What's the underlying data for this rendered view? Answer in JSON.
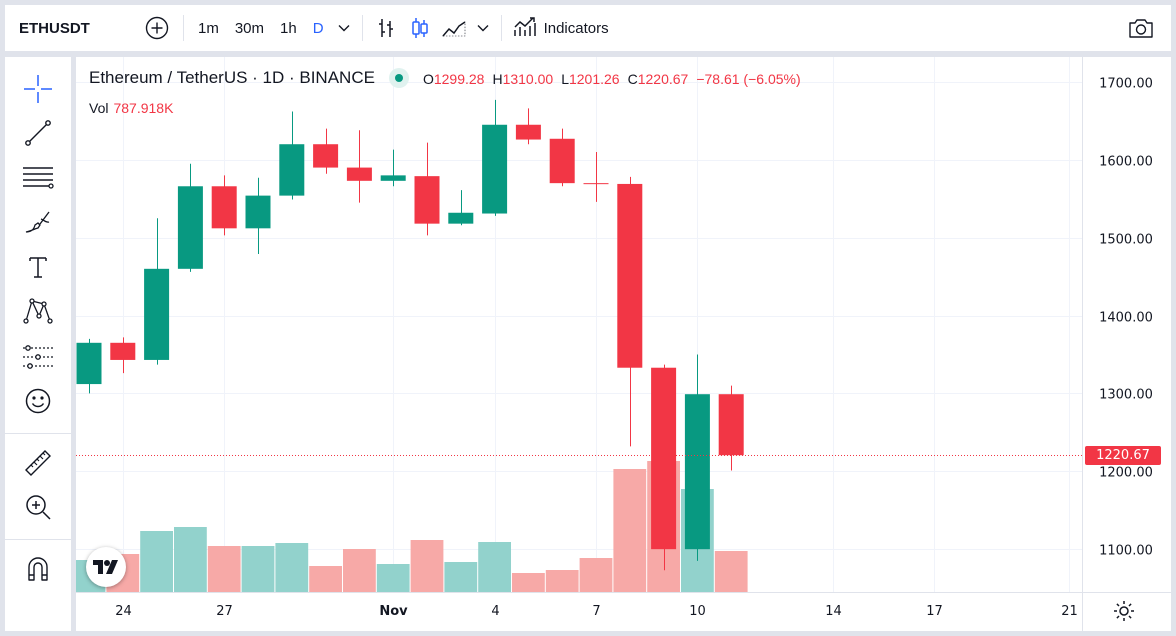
{
  "toolbar": {
    "symbol": "ETHUSDT",
    "intervals": [
      "1m",
      "30m",
      "1h",
      "D"
    ],
    "active_interval": "D",
    "indicators_label": "Indicators",
    "icons": [
      "plus-circle-icon",
      "bar-chart-icon",
      "candles-icon",
      "area-chart-icon",
      "chevron-down-icon",
      "indicators-icon",
      "camera-icon"
    ]
  },
  "left_tools": [
    "crosshair-icon",
    "trend-line-icon",
    "fib-lines-icon",
    "brush-icon",
    "text-icon",
    "pattern-icon",
    "forecast-icon",
    "emoji-icon",
    "ruler-icon",
    "zoom-in-icon",
    "magnet-icon"
  ],
  "legend": {
    "title": "Ethereum / TetherUS · 1D · BINANCE",
    "o_label": "O",
    "o_value": "1299.28",
    "h_label": "H",
    "h_value": "1310.00",
    "l_label": "L",
    "l_value": "1201.26",
    "c_label": "C",
    "c_value": "1220.67",
    "change": "−78.61 (−6.05%)",
    "vol_label": "Vol",
    "vol_value": "787.918K"
  },
  "colors": {
    "up": "#089981",
    "down": "#f23645",
    "up_vol": "#92d2cc",
    "down_vol": "#f7a9a7",
    "grid": "#f0f3fa"
  },
  "chart_data": {
    "type": "candlestick",
    "yticks": [
      "1700.00",
      "1600.00",
      "1500.00",
      "1400.00",
      "1300.00",
      "1200.00",
      "1100.00"
    ],
    "ylim": [
      1045,
      1732
    ],
    "xticks": [
      {
        "label": "24",
        "index": 1,
        "bold": false
      },
      {
        "label": "27",
        "index": 4,
        "bold": false
      },
      {
        "label": "Nov",
        "index": 9,
        "bold": true
      },
      {
        "label": "4",
        "index": 12,
        "bold": false
      },
      {
        "label": "7",
        "index": 15,
        "bold": false
      },
      {
        "label": "10",
        "index": 18,
        "bold": false
      },
      {
        "label": "14",
        "index": 22,
        "bold": false
      },
      {
        "label": "17",
        "index": 25,
        "bold": false
      },
      {
        "label": "21",
        "index": 29,
        "bold": false
      }
    ],
    "last_price": "1220.67",
    "last_value": 1220.67,
    "candles": [
      {
        "o": 1312,
        "h": 1370,
        "l": 1300,
        "c": 1365,
        "v": 3.2
      },
      {
        "o": 1365,
        "h": 1372,
        "l": 1326,
        "c": 1343,
        "v": 3.8
      },
      {
        "o": 1343,
        "h": 1525,
        "l": 1337,
        "c": 1460,
        "v": 6.1
      },
      {
        "o": 1460,
        "h": 1595,
        "l": 1456,
        "c": 1566,
        "v": 6.5
      },
      {
        "o": 1566,
        "h": 1580,
        "l": 1503,
        "c": 1512,
        "v": 4.6
      },
      {
        "o": 1512,
        "h": 1577,
        "l": 1479,
        "c": 1554,
        "v": 4.6
      },
      {
        "o": 1554,
        "h": 1662,
        "l": 1549,
        "c": 1620,
        "v": 4.9
      },
      {
        "o": 1620,
        "h": 1640,
        "l": 1582,
        "c": 1590,
        "v": 2.6
      },
      {
        "o": 1590,
        "h": 1638,
        "l": 1545,
        "c": 1573,
        "v": 4.3
      },
      {
        "o": 1573,
        "h": 1613,
        "l": 1566,
        "c": 1580,
        "v": 2.8
      },
      {
        "o": 1579,
        "h": 1622,
        "l": 1503,
        "c": 1518,
        "v": 5.2
      },
      {
        "o": 1518,
        "h": 1561,
        "l": 1516,
        "c": 1532,
        "v": 3.0
      },
      {
        "o": 1531,
        "h": 1677,
        "l": 1528,
        "c": 1645,
        "v": 5.0
      },
      {
        "o": 1645,
        "h": 1666,
        "l": 1620,
        "c": 1626,
        "v": 1.9
      },
      {
        "o": 1627,
        "h": 1640,
        "l": 1566,
        "c": 1570,
        "v": 2.2
      },
      {
        "o": 1570,
        "h": 1610,
        "l": 1546,
        "c": 1569,
        "v": 3.4
      },
      {
        "o": 1569,
        "h": 1578,
        "l": 1232,
        "c": 1333,
        "v": 12.3
      },
      {
        "o": 1333,
        "h": 1337,
        "l": 1073,
        "c": 1100,
        "v": 13.1
      },
      {
        "o": 1100,
        "h": 1350,
        "l": 1085,
        "c": 1299,
        "v": 10.3
      },
      {
        "o": 1299,
        "h": 1310,
        "l": 1201,
        "c": 1220.67,
        "v": 4.1
      }
    ]
  }
}
